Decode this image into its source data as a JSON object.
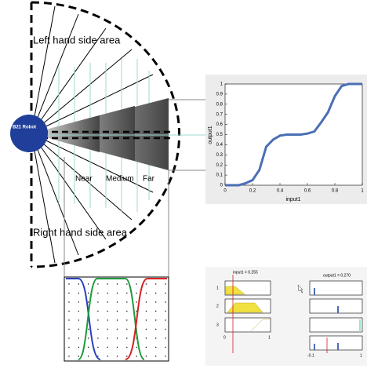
{
  "robot": {
    "label": "B21 Robot",
    "left_area": "Left hand side area",
    "right_area": "Right hand side area",
    "zones": [
      "Near",
      "Medium",
      "Far"
    ]
  },
  "surface_plot": {
    "xlabel": "input1",
    "ylabel": "output1",
    "xlim": [
      0,
      1
    ],
    "ylim": [
      0,
      1
    ],
    "xticks": [
      0,
      0.2,
      0.4,
      0.6,
      0.8,
      1
    ],
    "yticks": [
      0,
      0.1,
      0.2,
      0.3,
      0.4,
      0.5,
      0.6,
      0.7,
      0.8,
      0.9,
      1
    ],
    "x": [
      0,
      0.1,
      0.15,
      0.2,
      0.25,
      0.3,
      0.35,
      0.4,
      0.45,
      0.5,
      0.55,
      0.6,
      0.65,
      0.7,
      0.75,
      0.8,
      0.85,
      0.9,
      1
    ],
    "y": [
      0,
      0,
      0.02,
      0.05,
      0.15,
      0.38,
      0.45,
      0.49,
      0.5,
      0.5,
      0.5,
      0.51,
      0.53,
      0.62,
      0.72,
      0.88,
      0.98,
      1,
      1
    ],
    "color": "#4a6fb5"
  },
  "rule_viewer": {
    "input_label": "input1 = 0.255",
    "output_label": "output1 = 0.270",
    "rules": [
      "1",
      "2",
      "3"
    ],
    "input_ticks": [
      "0",
      "1"
    ],
    "output_ticks": [
      "-0.1",
      "1"
    ]
  }
}
